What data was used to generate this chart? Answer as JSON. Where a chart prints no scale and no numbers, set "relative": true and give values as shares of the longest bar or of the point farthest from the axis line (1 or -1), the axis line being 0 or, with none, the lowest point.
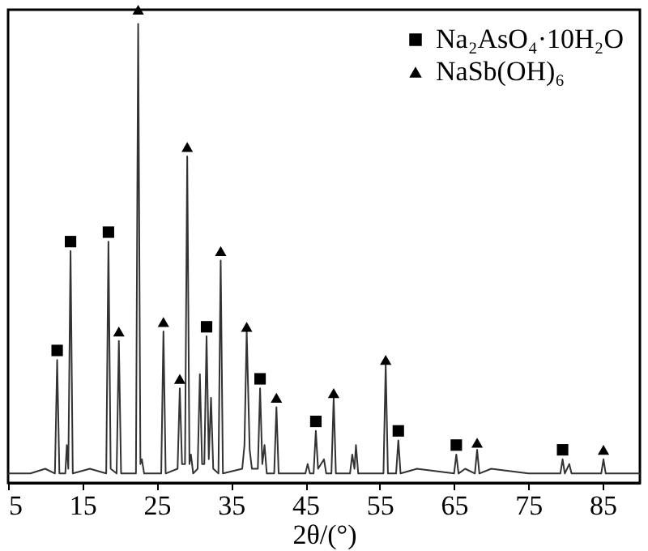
{
  "chart_data": {
    "type": "line",
    "relative": true,
    "xlabel": "2θ/(°)",
    "xlim": [
      5,
      90
    ],
    "xticks": [
      5,
      15,
      25,
      35,
      45,
      55,
      65,
      75,
      85
    ],
    "grid": false,
    "legend": "top right",
    "series": [
      {
        "type": "line",
        "color": "#333333",
        "x": [
          5,
          8,
          10,
          11.3,
          11.6,
          11.9,
          12.7,
          12.9,
          13.1,
          13.4,
          13.7,
          16,
          18.2,
          18.5,
          18.8,
          19.6,
          19.9,
          20.2,
          22.2,
          22.5,
          22.8,
          23.0,
          23.3,
          25.6,
          25.9,
          26.2,
          27.8,
          28.1,
          28.4,
          28.8,
          29.1,
          29.4,
          29.6,
          29.9,
          30.5,
          30.8,
          31.1,
          31.4,
          31.7,
          32.0,
          32.3,
          32.6,
          33.3,
          33.6,
          33.9,
          36.5,
          36.8,
          37.1,
          37.5,
          37.8,
          38.6,
          38.9,
          39.2,
          39.5,
          39.8,
          40.8,
          41.1,
          41.4,
          45.0,
          45.3,
          45.6,
          46.1,
          46.4,
          46.7,
          47.5,
          47.8,
          48.5,
          48.8,
          49.1,
          51.0,
          51.3,
          51.6,
          51.8,
          52.1,
          55.5,
          55.8,
          56.1,
          57.2,
          57.5,
          57.8,
          60,
          65.0,
          65.3,
          65.6,
          66.5,
          67.8,
          68.1,
          68.4,
          70,
          75,
          79.3,
          79.6,
          79.9,
          80.5,
          80.8,
          84.8,
          85.1,
          85.4,
          90
        ],
        "values": [
          0.02,
          0.02,
          0.03,
          0.02,
          0.26,
          0.02,
          0.02,
          0.08,
          0.03,
          0.49,
          0.02,
          0.03,
          0.02,
          0.51,
          0.03,
          0.02,
          0.3,
          0.02,
          0.02,
          0.97,
          0.04,
          0.05,
          0.02,
          0.02,
          0.32,
          0.02,
          0.03,
          0.2,
          0.04,
          0.04,
          0.69,
          0.04,
          0.06,
          0.02,
          0.03,
          0.23,
          0.04,
          0.04,
          0.31,
          0.05,
          0.18,
          0.03,
          0.02,
          0.47,
          0.02,
          0.03,
          0.08,
          0.32,
          0.07,
          0.03,
          0.03,
          0.2,
          0.04,
          0.08,
          0.02,
          0.02,
          0.16,
          0.02,
          0.02,
          0.04,
          0.02,
          0.02,
          0.11,
          0.03,
          0.05,
          0.02,
          0.02,
          0.18,
          0.02,
          0.02,
          0.06,
          0.03,
          0.08,
          0.02,
          0.02,
          0.25,
          0.02,
          0.02,
          0.09,
          0.02,
          0.03,
          0.02,
          0.06,
          0.02,
          0.03,
          0.02,
          0.07,
          0.02,
          0.03,
          0.02,
          0.02,
          0.05,
          0.02,
          0.04,
          0.02,
          0.02,
          0.05,
          0.02,
          0.02
        ]
      },
      {
        "type": "scatter",
        "name": "Na₂AsO₄·10H₂O",
        "marker": "square",
        "color": "#000000",
        "x": [
          11.6,
          13.4,
          18.5,
          31.7,
          38.9,
          46.4,
          57.5,
          65.3,
          79.6
        ],
        "values": [
          0.28,
          0.51,
          0.53,
          0.33,
          0.22,
          0.13,
          0.11,
          0.08,
          0.07
        ]
      },
      {
        "type": "scatter",
        "name": "NaSb(OH)₆",
        "marker": "triangle",
        "color": "#000000",
        "x": [
          19.9,
          22.5,
          25.9,
          28.1,
          29.1,
          33.6,
          37.1,
          41.1,
          48.8,
          55.8,
          68.1,
          85.1
        ],
        "values": [
          0.32,
          1.0,
          0.34,
          0.22,
          0.71,
          0.49,
          0.33,
          0.18,
          0.19,
          0.26,
          0.085,
          0.07
        ]
      }
    ]
  }
}
